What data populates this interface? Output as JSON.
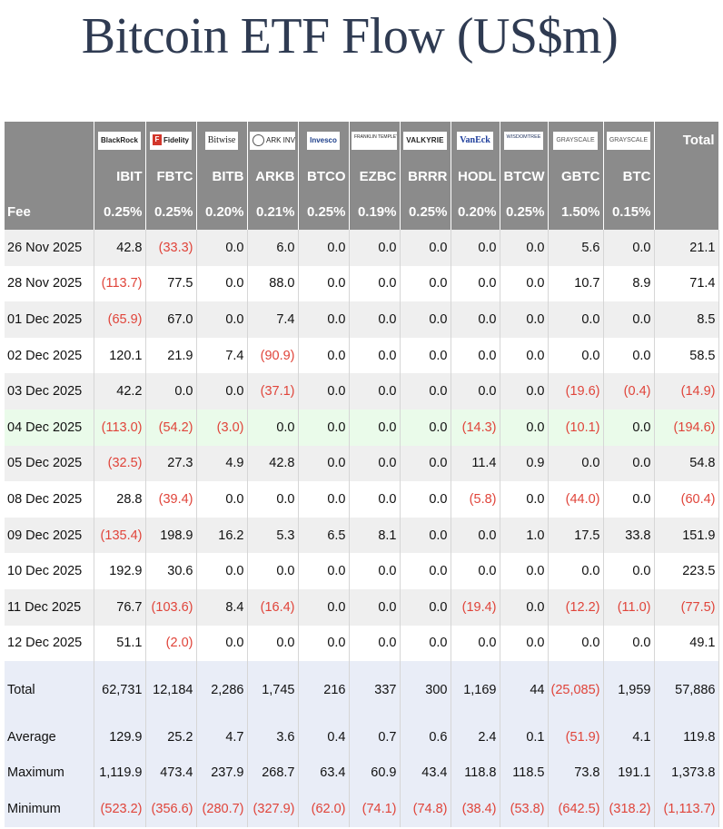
{
  "title": "Bitcoin ETF Flow (US$m)",
  "colors": {
    "header_bg": "#8b8b8b",
    "negative": "#e0443a",
    "stat_bg": "#e9edf7",
    "highlight_bg": "#eafbea",
    "alt_bg": "#efefef"
  },
  "logos": [
    {
      "icon": "blackrock-logo",
      "text": "BlackRock"
    },
    {
      "icon": "fidelity-logo",
      "text": "Fidelity"
    },
    {
      "icon": "bitwise-logo",
      "text": "Bitwise"
    },
    {
      "icon": "ark-invest-logo",
      "text": "ARK INVEST"
    },
    {
      "icon": "invesco-logo",
      "text": "Invesco"
    },
    {
      "icon": "franklin-templeton-logo",
      "text": "FRANKLIN TEMPLETON"
    },
    {
      "icon": "valkyrie-logo",
      "text": "VALKYRIE"
    },
    {
      "icon": "vaneck-logo",
      "text": "VanEck"
    },
    {
      "icon": "wisdomtree-logo",
      "text": "WISDOMTREE"
    },
    {
      "icon": "grayscale-logo",
      "text": "GRAYSCALE"
    },
    {
      "icon": "grayscale-logo",
      "text": "GRAYSCALE"
    }
  ],
  "chart_data": {
    "type": "table",
    "title": "Bitcoin ETF Flow (US$m)",
    "total_header": "Total",
    "tickers": [
      "IBIT",
      "FBTC",
      "BITB",
      "ARKB",
      "BTCO",
      "EZBC",
      "BRRR",
      "HODL",
      "BTCW",
      "GBTC",
      "BTC"
    ],
    "fee_label": "Fee",
    "fees": [
      "0.25%",
      "0.25%",
      "0.20%",
      "0.21%",
      "0.25%",
      "0.19%",
      "0.25%",
      "0.20%",
      "0.25%",
      "1.50%",
      "0.15%"
    ],
    "rows": [
      {
        "date": "26 Nov 2025",
        "values": [
          "42.8",
          "(33.3)",
          "0.0",
          "6.0",
          "0.0",
          "0.0",
          "0.0",
          "0.0",
          "0.0",
          "5.6",
          "0.0"
        ],
        "total": "21.1"
      },
      {
        "date": "28 Nov 2025",
        "values": [
          "(113.7)",
          "77.5",
          "0.0",
          "88.0",
          "0.0",
          "0.0",
          "0.0",
          "0.0",
          "0.0",
          "10.7",
          "8.9"
        ],
        "total": "71.4"
      },
      {
        "date": "01 Dec 2025",
        "values": [
          "(65.9)",
          "67.0",
          "0.0",
          "7.4",
          "0.0",
          "0.0",
          "0.0",
          "0.0",
          "0.0",
          "0.0",
          "0.0"
        ],
        "total": "8.5"
      },
      {
        "date": "02 Dec 2025",
        "values": [
          "120.1",
          "21.9",
          "7.4",
          "(90.9)",
          "0.0",
          "0.0",
          "0.0",
          "0.0",
          "0.0",
          "0.0",
          "0.0"
        ],
        "total": "58.5"
      },
      {
        "date": "03 Dec 2025",
        "values": [
          "42.2",
          "0.0",
          "0.0",
          "(37.1)",
          "0.0",
          "0.0",
          "0.0",
          "0.0",
          "0.0",
          "(19.6)",
          "(0.4)"
        ],
        "total": "(14.9)"
      },
      {
        "date": "04 Dec 2025",
        "values": [
          "(113.0)",
          "(54.2)",
          "(3.0)",
          "0.0",
          "0.0",
          "0.0",
          "0.0",
          "(14.3)",
          "0.0",
          "(10.1)",
          "0.0"
        ],
        "total": "(194.6)",
        "highlight": true
      },
      {
        "date": "05 Dec 2025",
        "values": [
          "(32.5)",
          "27.3",
          "4.9",
          "42.8",
          "0.0",
          "0.0",
          "0.0",
          "11.4",
          "0.9",
          "0.0",
          "0.0"
        ],
        "total": "54.8"
      },
      {
        "date": "08 Dec 2025",
        "values": [
          "28.8",
          "(39.4)",
          "0.0",
          "0.0",
          "0.0",
          "0.0",
          "0.0",
          "(5.8)",
          "0.0",
          "(44.0)",
          "0.0"
        ],
        "total": "(60.4)"
      },
      {
        "date": "09 Dec 2025",
        "values": [
          "(135.4)",
          "198.9",
          "16.2",
          "5.3",
          "6.5",
          "8.1",
          "0.0",
          "0.0",
          "1.0",
          "17.5",
          "33.8"
        ],
        "total": "151.9"
      },
      {
        "date": "10 Dec 2025",
        "values": [
          "192.9",
          "30.6",
          "0.0",
          "0.0",
          "0.0",
          "0.0",
          "0.0",
          "0.0",
          "0.0",
          "0.0",
          "0.0"
        ],
        "total": "223.5"
      },
      {
        "date": "11 Dec 2025",
        "values": [
          "76.7",
          "(103.6)",
          "8.4",
          "(16.4)",
          "0.0",
          "0.0",
          "0.0",
          "(19.4)",
          "0.0",
          "(12.2)",
          "(11.0)"
        ],
        "total": "(77.5)"
      },
      {
        "date": "12 Dec 2025",
        "values": [
          "51.1",
          "(2.0)",
          "0.0",
          "0.0",
          "0.0",
          "0.0",
          "0.0",
          "0.0",
          "0.0",
          "0.0",
          "0.0"
        ],
        "total": "49.1"
      }
    ],
    "summary": [
      {
        "label": "Total",
        "values": [
          "62,731",
          "12,184",
          "2,286",
          "1,745",
          "216",
          "337",
          "300",
          "1,169",
          "44",
          "(25,085)",
          "1,959"
        ],
        "total": "57,886"
      },
      {
        "label": "Average",
        "values": [
          "129.9",
          "25.2",
          "4.7",
          "3.6",
          "0.4",
          "0.7",
          "0.6",
          "2.4",
          "0.1",
          "(51.9)",
          "4.1"
        ],
        "total": "119.8"
      },
      {
        "label": "Maximum",
        "values": [
          "1,119.9",
          "473.4",
          "237.9",
          "268.7",
          "63.4",
          "60.9",
          "43.4",
          "118.8",
          "118.5",
          "73.8",
          "191.1"
        ],
        "total": "1,373.8"
      },
      {
        "label": "Minimum",
        "values": [
          "(523.2)",
          "(356.6)",
          "(280.7)",
          "(327.9)",
          "(62.0)",
          "(74.1)",
          "(74.8)",
          "(38.4)",
          "(53.8)",
          "(642.5)",
          "(318.2)"
        ],
        "total": "(1,113.7)"
      }
    ]
  }
}
